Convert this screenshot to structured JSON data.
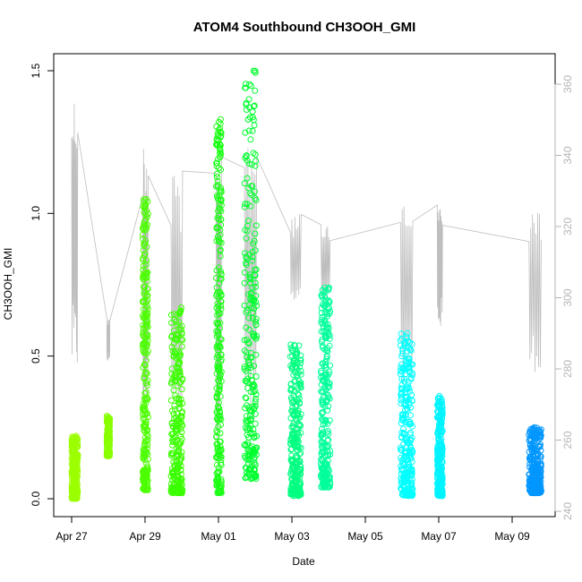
{
  "chart_data": {
    "type": "scatter",
    "title": "ATOM4 Southbound CH3OOH_GMI",
    "xlabel": "Date",
    "ylabel": "CH3OOH_GMI",
    "xlim": [
      "2018-04-26T12:00",
      "2018-05-10T06:00"
    ],
    "ylim": [
      0,
      1.5
    ],
    "y2lim": [
      240,
      360
    ],
    "x_ticks": [
      "Apr 27",
      "Apr 29",
      "May 01",
      "May 03",
      "May 05",
      "May 07",
      "May 09"
    ],
    "x_tick_dates": [
      "2018-04-27",
      "2018-04-29",
      "2018-05-01",
      "2018-05-03",
      "2018-05-05",
      "2018-05-07",
      "2018-05-09"
    ],
    "y_ticks": [
      "0.0",
      "0.5",
      "1.0",
      "1.5"
    ],
    "y2_ticks": [
      "240",
      "260",
      "280",
      "300",
      "320",
      "340",
      "360"
    ],
    "grid": false,
    "marker": "open-circle",
    "marker_color_scale": "time (yellow-green to blue)",
    "secondary_line_color": "#bebebe",
    "series": [
      {
        "values": [
          {
            "start": "2018-04-27T00:00",
            "end": "2018-04-27T04:00",
            "ymin": 0.0,
            "ymax": 0.22,
            "color": "#9cff00"
          },
          {
            "start": "2018-04-27T23:00",
            "end": "2018-04-28T01:00",
            "ymin": 0.15,
            "ymax": 0.29,
            "color": "#88ff00"
          },
          {
            "start": "2018-04-28T22:30",
            "end": "2018-04-29T02:00",
            "ymin": 0.03,
            "ymax": 1.05,
            "color": "#4cff00"
          },
          {
            "start": "2018-04-29T17:00",
            "end": "2018-04-30T00:30",
            "ymin": 0.02,
            "ymax": 0.67,
            "color": "#3aff00"
          },
          {
            "start": "2018-04-30T22:30",
            "end": "2018-05-01T02:00",
            "ymin": 0.02,
            "ymax": 1.33,
            "color": "#1cff16"
          },
          {
            "start": "2018-05-01T17:00",
            "end": "2018-05-02T01:00",
            "ymin": 0.07,
            "ymax": 1.5,
            "color": "#00ff2e"
          },
          {
            "start": "2018-05-02T23:00",
            "end": "2018-05-03T06:00",
            "ymin": 0.01,
            "ymax": 0.54,
            "color": "#00ff80"
          },
          {
            "start": "2018-05-03T19:00",
            "end": "2018-05-04T01:00",
            "ymin": 0.04,
            "ymax": 0.74,
            "color": "#00ff9a"
          },
          {
            "start": "2018-05-05T23:00",
            "end": "2018-05-06T07:00",
            "ymin": 0.01,
            "ymax": 0.58,
            "color": "#00ffff"
          },
          {
            "start": "2018-05-06T23:00",
            "end": "2018-05-07T02:30",
            "ymin": 0.01,
            "ymax": 0.36,
            "color": "#00f4ff"
          },
          {
            "start": "2018-05-09T11:00",
            "end": "2018-05-09T19:00",
            "ymin": 0.02,
            "ymax": 0.25,
            "color": "#0096ff"
          }
        ]
      }
    ],
    "secondary_series_right_axis": [
      {
        "start": "2018-04-27T00:00",
        "end": "2018-04-27T04:00",
        "min": 278,
        "max": 358
      },
      {
        "start": "2018-04-27T23:00",
        "end": "2018-04-28T01:00",
        "min": 282,
        "max": 295
      },
      {
        "start": "2018-04-28T22:30",
        "end": "2018-04-29T02:00",
        "min": 265,
        "max": 345
      },
      {
        "start": "2018-04-29T17:00",
        "end": "2018-04-30T00:30",
        "min": 262,
        "max": 336
      },
      {
        "start": "2018-04-30T22:30",
        "end": "2018-05-01T02:00",
        "min": 260,
        "max": 340
      },
      {
        "start": "2018-05-01T17:00",
        "end": "2018-05-02T01:00",
        "min": 265,
        "max": 348
      },
      {
        "start": "2018-05-02T23:00",
        "end": "2018-05-03T06:00",
        "min": 296,
        "max": 324
      },
      {
        "start": "2018-05-03T19:00",
        "end": "2018-05-04T01:00",
        "min": 298,
        "max": 322
      },
      {
        "start": "2018-05-05T23:00",
        "end": "2018-05-06T07:00",
        "min": 276,
        "max": 329
      },
      {
        "start": "2018-05-06T23:00",
        "end": "2018-05-07T02:30",
        "min": 291,
        "max": 328
      },
      {
        "start": "2018-05-09T11:00",
        "end": "2018-05-09T19:00",
        "min": 279,
        "max": 325
      }
    ]
  }
}
